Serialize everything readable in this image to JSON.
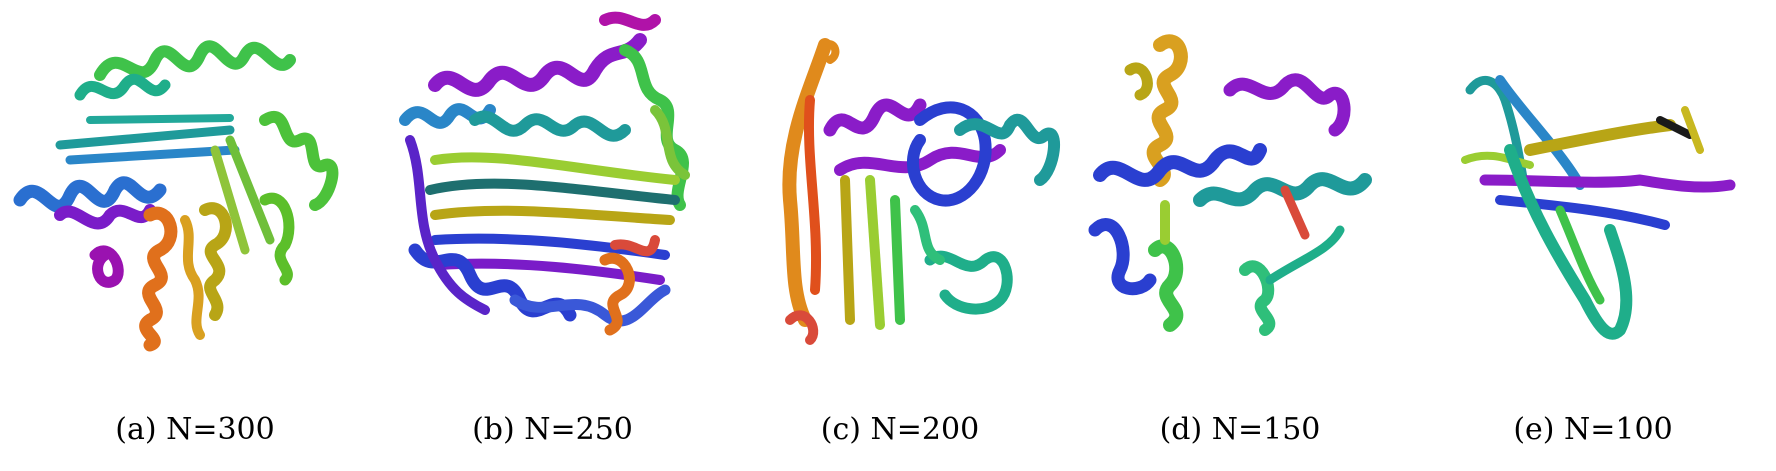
{
  "panels": [
    {
      "caption": "(a) N=300",
      "subject": "protein-ribbon-structure"
    },
    {
      "caption": "(b) N=250",
      "subject": "protein-ribbon-structure"
    },
    {
      "caption": "(c) N=200",
      "subject": "protein-ribbon-structure"
    },
    {
      "caption": "(d) N=150",
      "subject": "protein-ribbon-structure"
    },
    {
      "caption": "(e) N=100",
      "subject": "protein-ribbon-structure"
    }
  ],
  "colors": {
    "violet": "#8a1cc8",
    "purple": "#a012b0",
    "blue": "#2a3fd0",
    "skyblue": "#2a86c8",
    "teal": "#1f9a9a",
    "green": "#3fc24a",
    "lime": "#9acd32",
    "olive": "#b8a516",
    "orange": "#e08a1c",
    "red": "#d94a3a",
    "background": "#ffffff"
  }
}
